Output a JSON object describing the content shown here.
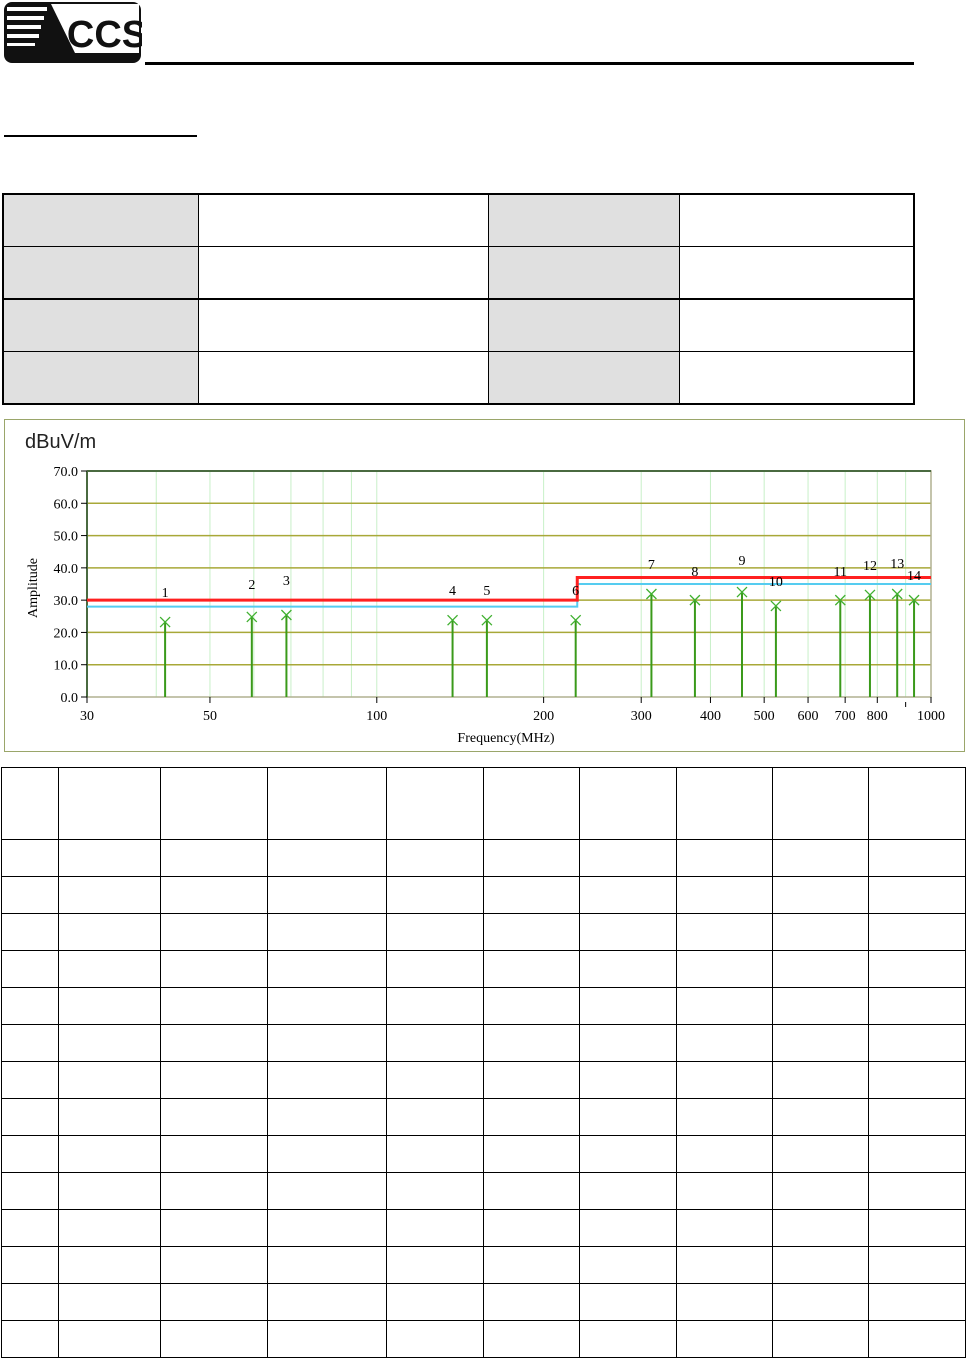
{
  "header": {
    "logo_text": "CCS"
  },
  "info_table": {
    "rows": 4,
    "cols": 4
  },
  "chart_data": {
    "type": "scatter",
    "unit_label": "dBuV/m",
    "ylabel": "Amplitude",
    "xlabel": "Frequency(MHz)",
    "x_scale": "log",
    "xlim": [
      30,
      1000
    ],
    "ylim": [
      0,
      70
    ],
    "x_ticks": [
      "30",
      "50",
      "100",
      "200",
      "300",
      "400",
      "500",
      "600",
      "700",
      "800",
      "1000"
    ],
    "y_ticks": [
      "0.0",
      "10.0",
      "20.0",
      "30.0",
      "40.0",
      "50.0",
      "60.0",
      "70.0"
    ],
    "grid": true,
    "limit_line": {
      "color": "#ff2020",
      "points": [
        [
          30,
          30
        ],
        [
          230,
          30
        ],
        [
          230,
          37
        ],
        [
          1000,
          37
        ]
      ]
    },
    "margin_line": {
      "color": "#55ccf0",
      "points": [
        [
          30,
          28
        ],
        [
          230,
          28
        ],
        [
          230,
          35
        ],
        [
          1000,
          35
        ]
      ]
    },
    "markers": [
      {
        "label": "1",
        "x": 41.5,
        "y": 23.2
      },
      {
        "label": "2",
        "x": 59.5,
        "y": 24.8
      },
      {
        "label": "3",
        "x": 68.7,
        "y": 25.4
      },
      {
        "label": "4",
        "x": 137,
        "y": 23.8
      },
      {
        "label": "5",
        "x": 158,
        "y": 23.8
      },
      {
        "label": "6",
        "x": 228.5,
        "y": 23.8
      },
      {
        "label": "7",
        "x": 313,
        "y": 31.9
      },
      {
        "label": "8",
        "x": 375,
        "y": 30.0
      },
      {
        "label": "9",
        "x": 456,
        "y": 32.5
      },
      {
        "label": "10",
        "x": 525,
        "y": 28.2
      },
      {
        "label": "11",
        "x": 686,
        "y": 30.0
      },
      {
        "label": "12",
        "x": 776,
        "y": 31.6
      },
      {
        "label": "13",
        "x": 869,
        "y": 31.9
      },
      {
        "label": "14",
        "x": 932,
        "y": 30.0
      }
    ],
    "marker_color": "#3a9a1a"
  },
  "data_table": {
    "rows": 15,
    "cols": 10
  }
}
